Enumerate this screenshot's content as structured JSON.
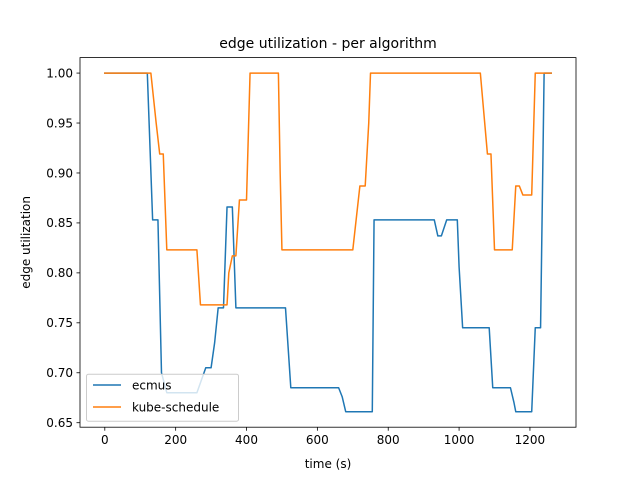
{
  "chart_data": {
    "type": "line",
    "title": "edge utilization - per algorithm",
    "xlabel": "time (s)",
    "ylabel": "edge utilization",
    "xlim": [
      -70,
      1330
    ],
    "ylim": [
      0.6455,
      1.0155
    ],
    "xticks": [
      0,
      200,
      400,
      600,
      800,
      1000,
      1200
    ],
    "yticks": [
      0.65,
      0.7,
      0.75,
      0.8,
      0.85,
      0.9,
      0.95,
      1.0
    ],
    "ytick_labels": [
      "0.65",
      "0.70",
      "0.75",
      "0.80",
      "0.85",
      "0.90",
      "0.95",
      "1.00"
    ],
    "legend_position": "lower left",
    "series": [
      {
        "name": "ecmus",
        "color": "#1f77b4",
        "x": [
          0,
          120,
          135,
          150,
          160,
          175,
          260,
          285,
          300,
          310,
          320,
          335,
          345,
          360,
          370,
          380,
          500,
          510,
          525,
          540,
          660,
          670,
          680,
          700,
          745,
          755,
          760,
          930,
          940,
          950,
          965,
          980,
          995,
          1000,
          1010,
          1020,
          1040,
          1085,
          1095,
          1100,
          1110,
          1145,
          1155,
          1160,
          1170,
          1195,
          1205,
          1215,
          1230,
          1240,
          1250,
          1260
        ],
        "y": [
          1.0,
          1.0,
          0.853,
          0.853,
          0.7,
          0.68,
          0.68,
          0.705,
          0.705,
          0.73,
          0.765,
          0.765,
          0.866,
          0.866,
          0.765,
          0.765,
          0.765,
          0.765,
          0.685,
          0.685,
          0.685,
          0.676,
          0.661,
          0.661,
          0.661,
          0.661,
          0.853,
          0.853,
          0.837,
          0.837,
          0.853,
          0.853,
          0.853,
          0.806,
          0.745,
          0.745,
          0.745,
          0.745,
          0.685,
          0.685,
          0.685,
          0.685,
          0.67,
          0.661,
          0.661,
          0.661,
          0.661,
          0.745,
          0.745,
          1.0,
          1.0,
          1.0
        ]
      },
      {
        "name": "kube-schedule",
        "color": "#ff7f0e",
        "x": [
          0,
          130,
          145,
          155,
          165,
          175,
          260,
          270,
          300,
          345,
          350,
          360,
          370,
          380,
          390,
          400,
          410,
          420,
          490,
          495,
          500,
          510,
          700,
          720,
          735,
          745,
          750,
          765,
          1060,
          1080,
          1090,
          1100,
          1110,
          1150,
          1160,
          1170,
          1180,
          1200,
          1205,
          1215,
          1220,
          1240,
          1260
        ],
        "y": [
          1.0,
          1.0,
          0.95,
          0.919,
          0.919,
          0.823,
          0.823,
          0.768,
          0.768,
          0.768,
          0.8,
          0.817,
          0.817,
          0.873,
          0.873,
          0.873,
          1.0,
          1.0,
          1.0,
          0.9,
          0.823,
          0.823,
          0.823,
          0.887,
          0.887,
          0.95,
          1.0,
          1.0,
          1.0,
          0.919,
          0.919,
          0.823,
          0.823,
          0.823,
          0.887,
          0.887,
          0.878,
          0.878,
          0.878,
          1.0,
          1.0,
          1.0,
          1.0
        ]
      }
    ]
  }
}
